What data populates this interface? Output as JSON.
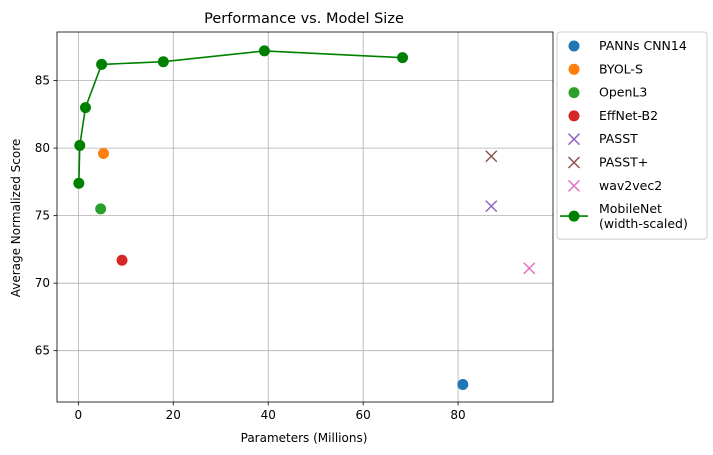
{
  "chart_data": {
    "type": "scatter",
    "title": "Performance vs. Model Size",
    "xlabel": "Parameters (Millions)",
    "ylabel": "Average Normalized Score",
    "xlim": [
      -4.5,
      100
    ],
    "ylim": [
      61.2,
      88.6
    ],
    "xticks": [
      0,
      20,
      40,
      60,
      80
    ],
    "yticks": [
      65,
      70,
      75,
      80,
      85
    ],
    "grid": true,
    "legend_position": "outside-right",
    "series": [
      {
        "name": "PANNs CNN14",
        "marker": "circle",
        "color": "#1f77b4",
        "points": [
          {
            "x": 81,
            "y": 62.5
          }
        ]
      },
      {
        "name": "BYOL-S",
        "marker": "circle",
        "color": "#ff7f0e",
        "points": [
          {
            "x": 5.3,
            "y": 79.6
          }
        ]
      },
      {
        "name": "OpenL3",
        "marker": "circle",
        "color": "#2ca02c",
        "points": [
          {
            "x": 4.7,
            "y": 75.5
          }
        ]
      },
      {
        "name": "EffNet-B2",
        "marker": "circle",
        "color": "#d62728",
        "points": [
          {
            "x": 9.2,
            "y": 71.7
          }
        ]
      },
      {
        "name": "PASST",
        "marker": "x",
        "color": "#9467bd",
        "points": [
          {
            "x": 87,
            "y": 75.7
          }
        ]
      },
      {
        "name": "PASST+",
        "marker": "x",
        "color": "#8c564b",
        "points": [
          {
            "x": 87,
            "y": 79.4
          }
        ]
      },
      {
        "name": "wav2vec2",
        "marker": "x",
        "color": "#e377c2",
        "points": [
          {
            "x": 95,
            "y": 71.1
          }
        ]
      },
      {
        "name": "MobileNet\n(width-scaled)",
        "marker": "line-circle",
        "color": "#008000",
        "points": [
          {
            "x": 0.1,
            "y": 77.4
          },
          {
            "x": 0.3,
            "y": 80.2
          },
          {
            "x": 1.5,
            "y": 83.0
          },
          {
            "x": 4.9,
            "y": 86.2
          },
          {
            "x": 17.9,
            "y": 86.4
          },
          {
            "x": 39.2,
            "y": 87.2
          },
          {
            "x": 68.3,
            "y": 86.7
          }
        ]
      }
    ]
  }
}
